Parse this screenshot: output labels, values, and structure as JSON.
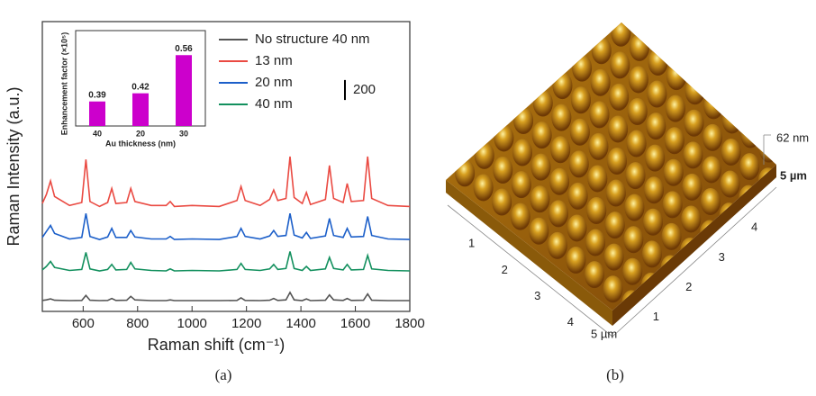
{
  "chart_data": [
    {
      "type": "line",
      "xlabel": "Raman shift (cm⁻¹)",
      "ylabel": "Raman Intensity (a.u.)",
      "x": [
        450,
        465,
        480,
        495,
        550,
        595,
        610,
        625,
        660,
        690,
        705,
        720,
        760,
        775,
        790,
        850,
        905,
        920,
        935,
        1000,
        1100,
        1165,
        1180,
        1195,
        1250,
        1285,
        1300,
        1315,
        1345,
        1360,
        1375,
        1405,
        1420,
        1435,
        1490,
        1505,
        1520,
        1555,
        1570,
        1585,
        1630,
        1645,
        1660,
        1720,
        1800
      ],
      "xlim": [
        450,
        1800
      ],
      "xticks": [
        600,
        800,
        1000,
        1200,
        1400,
        1600,
        1800
      ],
      "ylim": [
        0,
        2900
      ],
      "legend": "top-right",
      "scale_bar": 200,
      "series": [
        {
          "name": "No structure 40 nm",
          "color": "#555555",
          "values": [
            110,
            115,
            125,
            112,
            108,
            110,
            160,
            112,
            108,
            110,
            130,
            110,
            112,
            150,
            115,
            108,
            108,
            115,
            108,
            108,
            108,
            110,
            135,
            110,
            108,
            112,
            130,
            110,
            115,
            190,
            115,
            108,
            125,
            108,
            112,
            165,
            115,
            110,
            130,
            110,
            112,
            175,
            112,
            108,
            108
          ]
        },
        {
          "name": "13 nm",
          "color": "#ea4a42",
          "values": [
            1080,
            1170,
            1305,
            1150,
            1060,
            1090,
            1520,
            1100,
            1050,
            1090,
            1230,
            1080,
            1090,
            1230,
            1100,
            1060,
            1060,
            1100,
            1050,
            1060,
            1050,
            1110,
            1250,
            1110,
            1060,
            1120,
            1215,
            1110,
            1130,
            1550,
            1140,
            1080,
            1190,
            1070,
            1120,
            1460,
            1130,
            1090,
            1280,
            1100,
            1110,
            1550,
            1130,
            1060,
            1050
          ]
        },
        {
          "name": "20 nm",
          "color": "#1c5fc9",
          "values": [
            740,
            800,
            860,
            780,
            725,
            740,
            980,
            750,
            720,
            745,
            830,
            740,
            740,
            810,
            745,
            725,
            725,
            750,
            720,
            725,
            720,
            750,
            830,
            750,
            725,
            755,
            810,
            750,
            760,
            980,
            765,
            735,
            790,
            730,
            755,
            930,
            760,
            740,
            830,
            745,
            750,
            950,
            760,
            725,
            720
          ]
        },
        {
          "name": "40 nm",
          "color": "#13905e",
          "values": [
            415,
            450,
            500,
            440,
            410,
            420,
            590,
            425,
            405,
            420,
            470,
            415,
            420,
            490,
            425,
            410,
            405,
            425,
            405,
            410,
            405,
            420,
            480,
            420,
            410,
            425,
            470,
            420,
            430,
            600,
            430,
            410,
            450,
            410,
            425,
            540,
            430,
            415,
            470,
            415,
            420,
            560,
            425,
            410,
            405
          ]
        }
      ]
    },
    {
      "type": "bar",
      "xlabel": "Au thickness (nm)",
      "ylabel": "Enhancement factor (×10⁵)",
      "categories": [
        "40",
        "20",
        "30"
      ],
      "values": [
        0.39,
        0.42,
        0.56
      ],
      "color": "#cc00cc",
      "ylim": [
        0.3,
        0.65
      ]
    }
  ],
  "panel_labels": [
    "(a)",
    "(b)"
  ],
  "afm_image": {
    "height": "62 nm",
    "x_extent": "5 µm",
    "y_extent": "5 µm",
    "x_ticks": [
      "1",
      "2",
      "3",
      "4"
    ],
    "y_ticks": [
      "1",
      "2",
      "3",
      "4"
    ]
  }
}
